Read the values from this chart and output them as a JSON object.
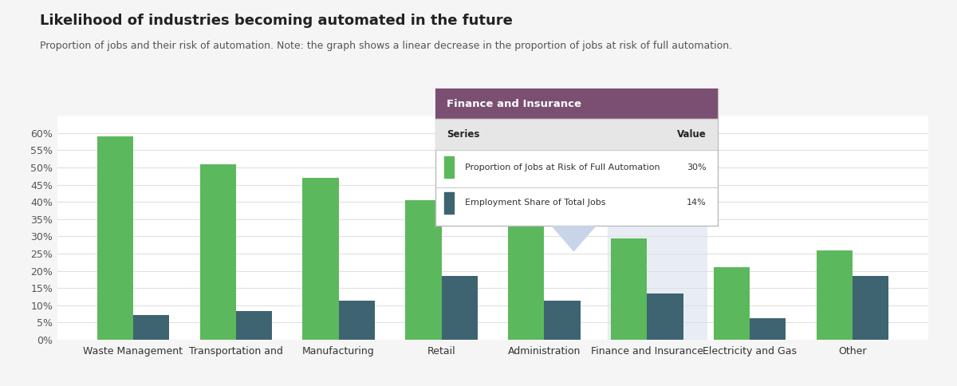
{
  "title": "Likelihood of industries becoming automated in the future",
  "subtitle": "Proportion of jobs and their risk of automation. Note: the graph shows a linear decrease in the proportion of jobs at risk of full automation.",
  "categories": [
    "Waste Management",
    "Transportation and",
    "Manufacturing",
    "Retail",
    "Administration",
    "Finance and Insurance",
    "Electricity and Gas",
    "Other"
  ],
  "automation_risk": [
    0.59,
    0.51,
    0.47,
    0.405,
    0.34,
    0.295,
    0.21,
    0.26
  ],
  "employment_share": [
    0.072,
    0.083,
    0.113,
    0.185,
    0.113,
    0.135,
    0.062,
    0.185
  ],
  "green_color": "#5cb85c",
  "dark_color": "#3d6470",
  "background_color": "#f5f5f5",
  "plot_bg_color": "#ffffff",
  "highlight_bg": "#e8edf5",
  "tooltip_header_color": "#7b4f72",
  "tooltip_header_text": "#ffffff",
  "tooltip_bg": "#ffffff",
  "ylim": [
    0,
    0.65
  ],
  "yticks": [
    0,
    0.05,
    0.1,
    0.15,
    0.2,
    0.25,
    0.3,
    0.35,
    0.4,
    0.45,
    0.5,
    0.55,
    0.6
  ],
  "tooltip_title": "Finance and Insurance",
  "tooltip_series1": "Proportion of Jobs at Risk of Full Automation",
  "tooltip_value1": "30%",
  "tooltip_series2": "Employment Share of Total Jobs",
  "tooltip_value2": "14%",
  "highlight_col_index": 5,
  "title_fontsize": 13,
  "subtitle_fontsize": 9
}
